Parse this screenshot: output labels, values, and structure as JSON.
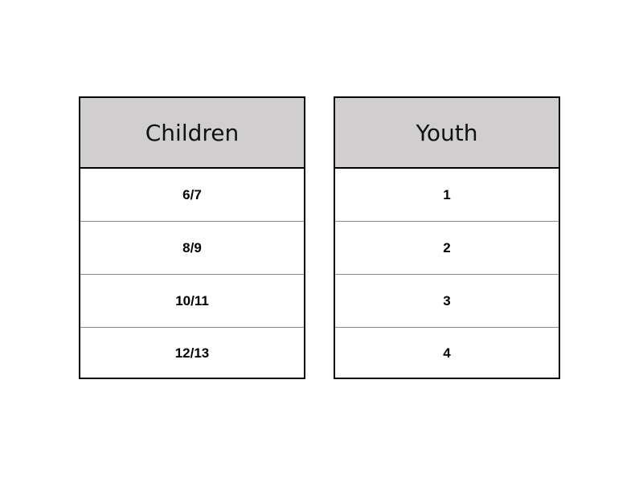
{
  "tables": [
    {
      "header": "Children",
      "rows": [
        "6/7",
        "8/9",
        "10/11",
        "12/13"
      ]
    },
    {
      "header": "Youth",
      "rows": [
        "1",
        "2",
        "3",
        "4"
      ]
    }
  ],
  "colors": {
    "header_fill": "#d0cece",
    "border": "#000000"
  }
}
